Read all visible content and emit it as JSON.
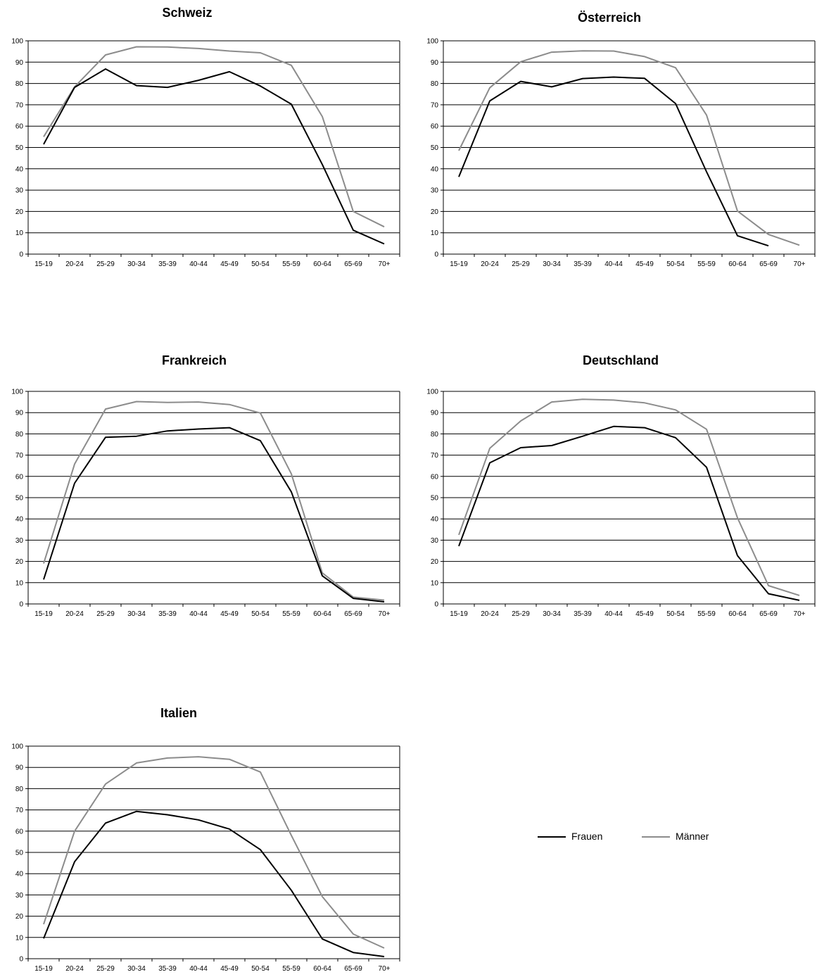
{
  "legend": {
    "frauen_label": "Frauen",
    "maenner_label": "Männer"
  },
  "colors": {
    "frauen": "#000000",
    "maenner": "#8c8c8c",
    "grid": "#000000"
  },
  "chart_data": [
    {
      "type": "line",
      "title": "Schweiz",
      "categories": [
        "15-19",
        "20-24",
        "25-29",
        "30-34",
        "35-39",
        "40-44",
        "45-49",
        "50-54",
        "55-59",
        "60-64",
        "65-69",
        "70+"
      ],
      "ylim": [
        0,
        100
      ],
      "yticks": [
        0,
        10,
        20,
        30,
        40,
        50,
        60,
        70,
        80,
        90,
        100
      ],
      "grid": true,
      "series": [
        {
          "name": "Frauen",
          "values": [
            51.5,
            78.2,
            86.8,
            79.0,
            78.2,
            81.5,
            85.5,
            78.8,
            70.3,
            42.0,
            11.2,
            4.8
          ]
        },
        {
          "name": "Männer",
          "values": [
            55.0,
            78.4,
            93.4,
            97.2,
            97.1,
            96.4,
            95.2,
            94.4,
            88.5,
            64.5,
            20.0,
            12.8
          ]
        }
      ]
    },
    {
      "type": "line",
      "title": "Österreich",
      "categories": [
        "15-19",
        "20-24",
        "25-29",
        "30-34",
        "35-39",
        "40-44",
        "45-49",
        "50-54",
        "55-59",
        "60-64",
        "65-69",
        "70+"
      ],
      "ylim": [
        0,
        100
      ],
      "yticks": [
        0,
        10,
        20,
        30,
        40,
        50,
        60,
        70,
        80,
        90,
        100
      ],
      "grid": true,
      "series": [
        {
          "name": "Frauen",
          "values": [
            36.2,
            71.8,
            81.0,
            78.4,
            82.3,
            83.0,
            82.4,
            70.6,
            38.6,
            8.6,
            3.9,
            null
          ]
        },
        {
          "name": "Männer",
          "values": [
            48.5,
            78.0,
            90.2,
            94.7,
            95.3,
            95.2,
            92.6,
            87.4,
            65.2,
            20.2,
            9.2,
            4.2
          ]
        }
      ]
    },
    {
      "type": "line",
      "title": "Frankreich",
      "categories": [
        "15-19",
        "20-24",
        "25-29",
        "30-34",
        "35-39",
        "40-44",
        "45-49",
        "50-54",
        "55-59",
        "60-64",
        "65-69",
        "70+"
      ],
      "ylim": [
        0,
        100
      ],
      "yticks": [
        0,
        10,
        20,
        30,
        40,
        50,
        60,
        70,
        80,
        90,
        100
      ],
      "grid": true,
      "series": [
        {
          "name": "Frauen",
          "values": [
            11.5,
            56.8,
            78.4,
            78.9,
            81.4,
            82.3,
            82.9,
            76.8,
            52.7,
            13.2,
            2.6,
            1.0
          ]
        },
        {
          "name": "Männer",
          "values": [
            19.0,
            65.8,
            91.7,
            95.2,
            94.8,
            95.0,
            93.8,
            89.8,
            61.2,
            14.6,
            3.2,
            1.8
          ]
        }
      ]
    },
    {
      "type": "line",
      "title": "Deutschland",
      "categories": [
        "15-19",
        "20-24",
        "25-29",
        "30-34",
        "35-39",
        "40-44",
        "45-49",
        "50-54",
        "55-59",
        "60-64",
        "65-69",
        "70+"
      ],
      "ylim": [
        0,
        100
      ],
      "yticks": [
        0,
        10,
        20,
        30,
        40,
        50,
        60,
        70,
        80,
        90,
        100
      ],
      "grid": true,
      "series": [
        {
          "name": "Frauen",
          "values": [
            27.2,
            66.4,
            73.5,
            74.5,
            78.9,
            83.5,
            82.9,
            78.2,
            64.3,
            22.7,
            4.8,
            1.7
          ]
        },
        {
          "name": "Männer",
          "values": [
            32.5,
            73.2,
            86.1,
            95.0,
            96.3,
            95.9,
            94.6,
            91.3,
            82.2,
            40.5,
            8.6,
            4.0
          ]
        }
      ]
    },
    {
      "type": "line",
      "title": "Italien",
      "categories": [
        "15-19",
        "20-24",
        "25-29",
        "30-34",
        "35-39",
        "40-44",
        "45-49",
        "50-54",
        "55-59",
        "60-64",
        "65-69",
        "70+"
      ],
      "ylim": [
        0,
        100
      ],
      "yticks": [
        0,
        10,
        20,
        30,
        40,
        50,
        60,
        70,
        80,
        90,
        100
      ],
      "grid": true,
      "series": [
        {
          "name": "Frauen",
          "values": [
            9.5,
            45.6,
            63.8,
            69.3,
            67.7,
            65.3,
            61.0,
            51.3,
            32.2,
            9.3,
            2.9,
            1.0
          ]
        },
        {
          "name": "Männer",
          "values": [
            16.2,
            60.0,
            82.2,
            92.1,
            94.4,
            95.0,
            93.8,
            87.8,
            58.0,
            29.2,
            11.6,
            5.0
          ]
        }
      ]
    }
  ]
}
